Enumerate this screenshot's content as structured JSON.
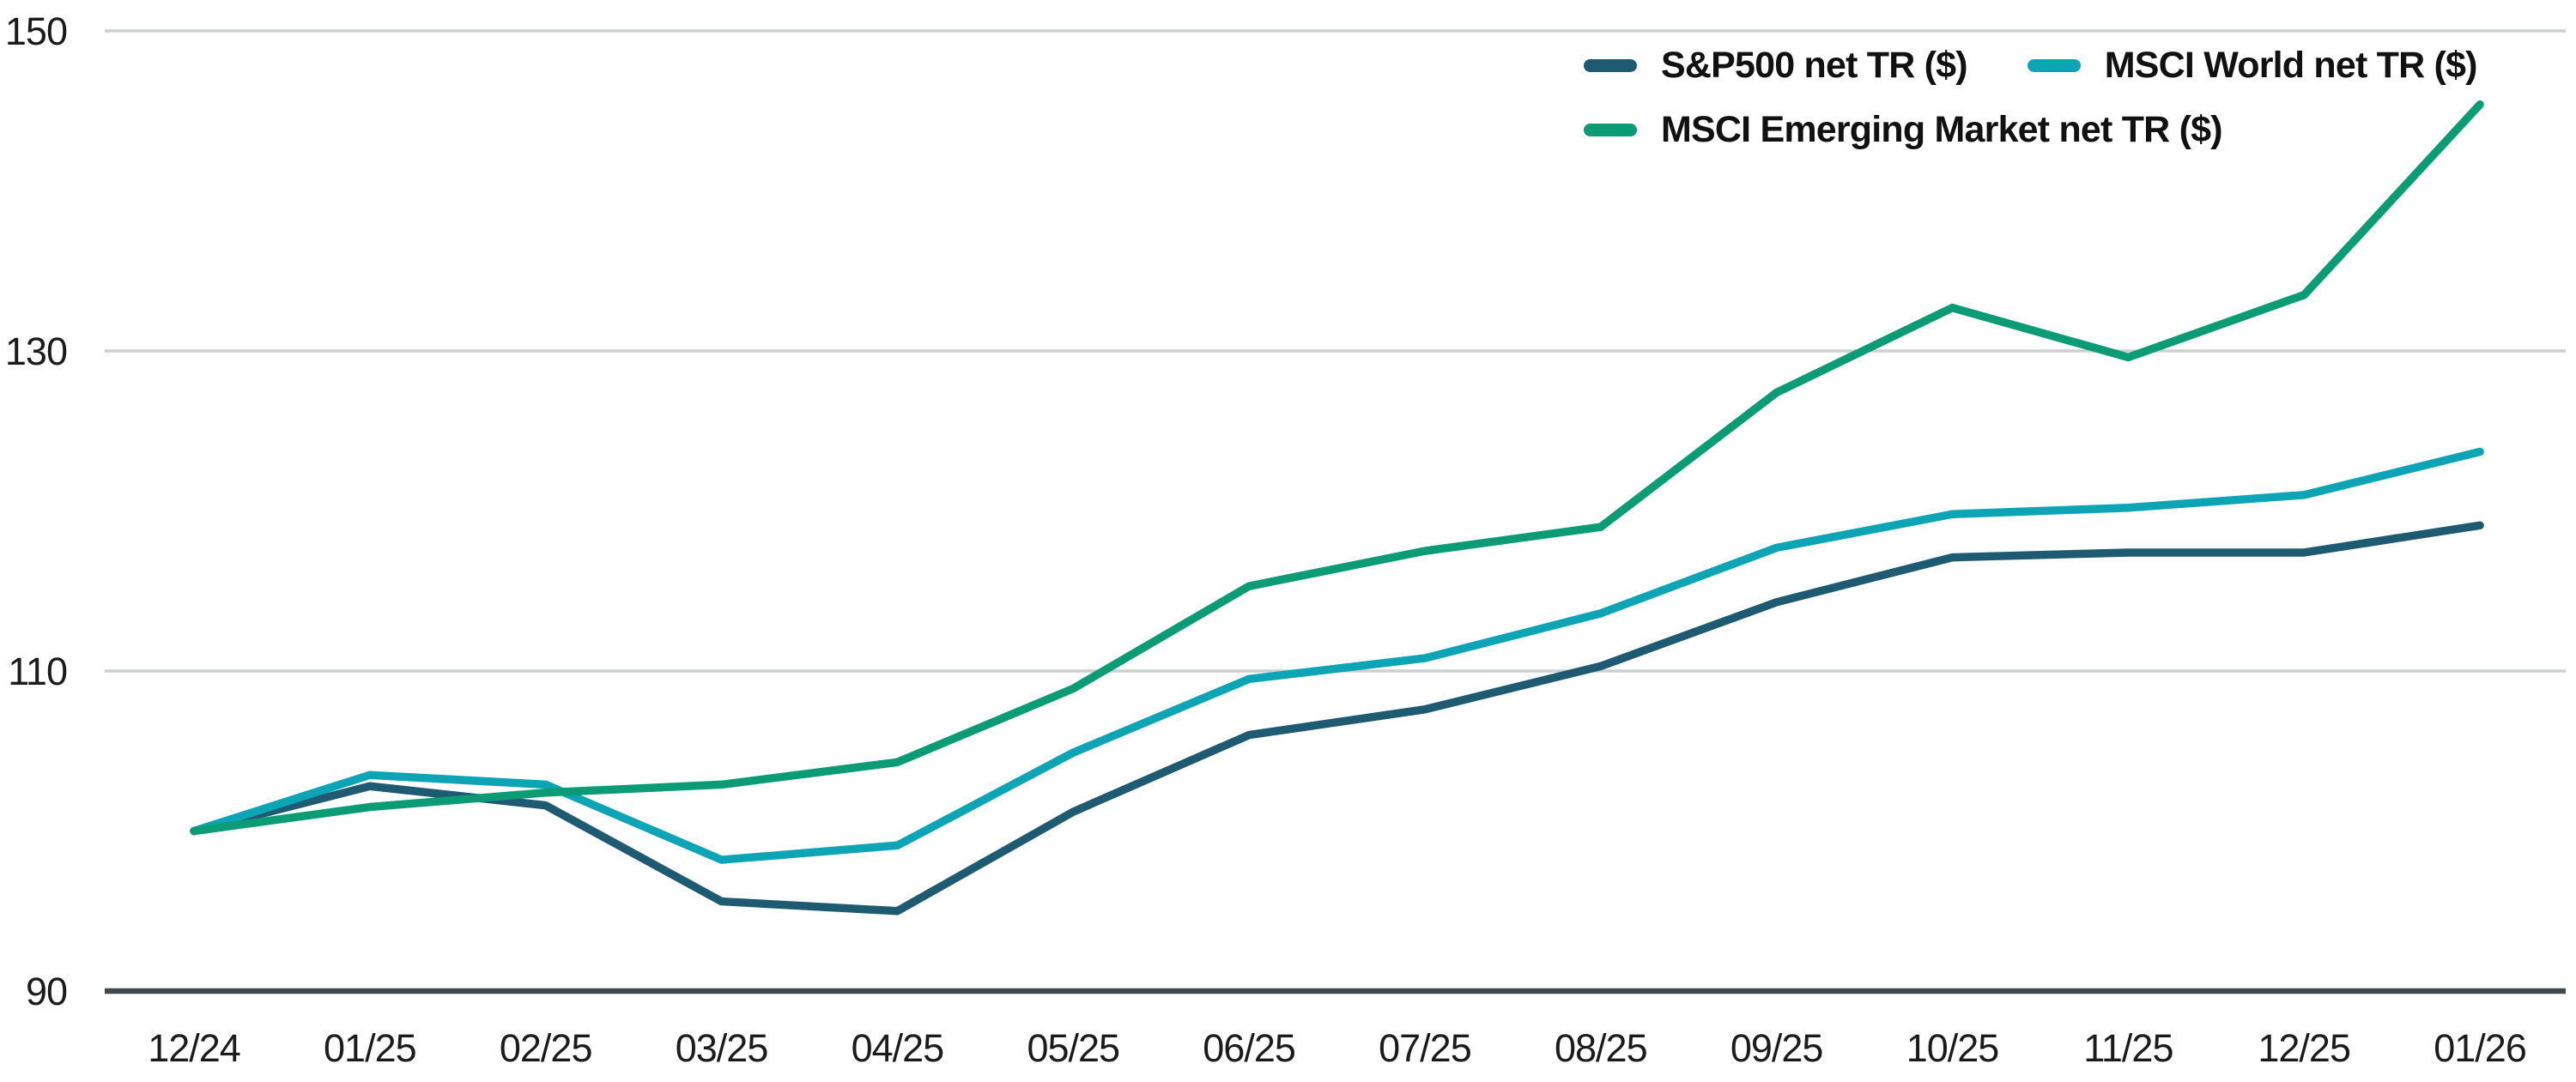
{
  "chart_data": {
    "type": "line",
    "title": "",
    "xlabel": "",
    "ylabel": "",
    "categories": [
      "12/24",
      "01/25",
      "02/25",
      "03/25",
      "04/25",
      "05/25",
      "06/25",
      "07/25",
      "08/25",
      "09/25",
      "10/25",
      "11/25",
      "12/25",
      "01/26"
    ],
    "series": [
      {
        "name": "S&P500 net TR ($)",
        "color": "#1e5b72",
        "values": [
          100,
          102.8,
          101.6,
          95.6,
          95.0,
          101.2,
          106.0,
          107.6,
          110.3,
          114.3,
          117.1,
          117.4,
          117.4,
          119.1
        ]
      },
      {
        "name": "MSCI World net TR ($)",
        "color": "#0da4b6",
        "values": [
          100,
          103.5,
          102.9,
          98.2,
          99.1,
          104.9,
          109.5,
          110.8,
          113.6,
          117.7,
          119.8,
          120.2,
          121.0,
          123.7
        ]
      },
      {
        "name": "MSCI Emerging Market net TR ($)",
        "color": "#0b9b75",
        "values": [
          100,
          101.5,
          102.4,
          102.9,
          104.3,
          108.9,
          115.3,
          117.5,
          119.0,
          127.4,
          132.7,
          129.6,
          133.5,
          145.4
        ]
      }
    ],
    "y_ticks": [
      90,
      110,
      130,
      150
    ],
    "ylim": [
      90,
      152
    ],
    "baseline_value": 100,
    "grid": "horizontal",
    "legend_position": "top-right"
  },
  "style": {
    "grid_color": "#cdd0d1",
    "axis_color": "#3e4950",
    "text_color": "#1b1b1b",
    "background": "#ffffff"
  },
  "legend": {
    "items": [
      {
        "label": "S&P500 net TR ($)"
      },
      {
        "label": "MSCI World net TR ($)"
      },
      {
        "label": "MSCI Emerging Market net TR ($)"
      }
    ]
  }
}
